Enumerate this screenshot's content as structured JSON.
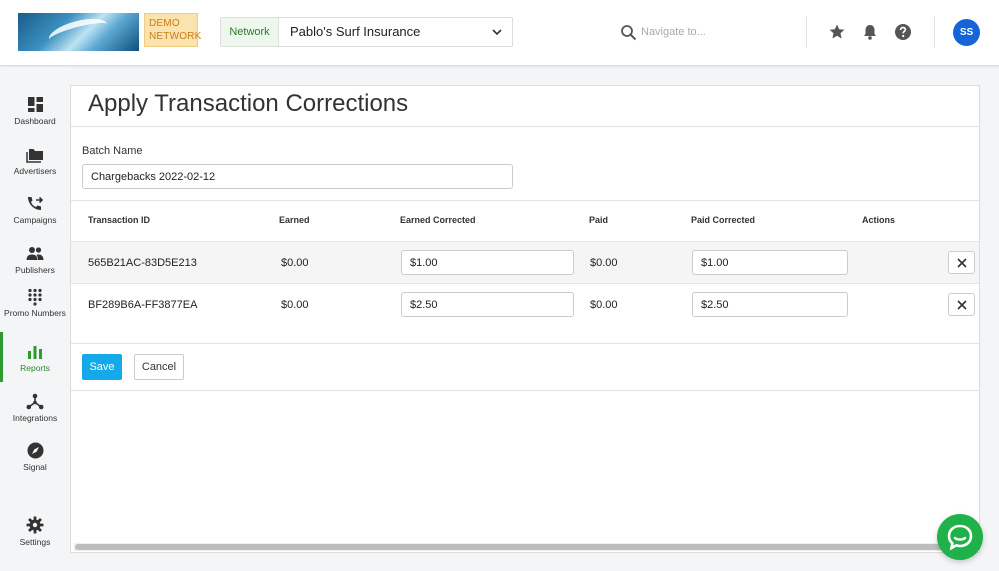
{
  "header": {
    "demo_badge": "DEMO NETWORK",
    "network_label": "Network",
    "network_value": "Pablo's Surf Insurance",
    "search_placeholder": "Navigate to...",
    "avatar_initials": "SS"
  },
  "sidebar": {
    "items": [
      {
        "label": "Dashboard",
        "icon": "dashboard-icon"
      },
      {
        "label": "Advertisers",
        "icon": "folder-icon"
      },
      {
        "label": "Campaigns",
        "icon": "phone-forward-icon"
      },
      {
        "label": "Publishers",
        "icon": "people-icon"
      },
      {
        "label": "Promo Numbers",
        "icon": "dialpad-icon"
      },
      {
        "label": "Reports",
        "icon": "bar-chart-icon",
        "active": true
      },
      {
        "label": "Integrations",
        "icon": "network-icon"
      },
      {
        "label": "Signal",
        "icon": "compass-icon"
      },
      {
        "label": "Settings",
        "icon": "gear-icon"
      }
    ]
  },
  "page": {
    "title": "Apply Transaction Corrections",
    "batch_label": "Batch Name",
    "batch_value": "Chargebacks 2022-02-12"
  },
  "table": {
    "columns": [
      "Transaction ID",
      "Earned",
      "Earned Corrected",
      "Paid",
      "Paid Corrected",
      "Actions"
    ],
    "rows": [
      {
        "transaction_id": "565B21AC-83D5E213",
        "earned": "$0.00",
        "earned_corrected": "$1.00",
        "paid": "$0.00",
        "paid_corrected": "$1.00"
      },
      {
        "transaction_id": "BF289B6A-FF3877EA",
        "earned": "$0.00",
        "earned_corrected": "$2.50",
        "paid": "$0.00",
        "paid_corrected": "$2.50"
      }
    ]
  },
  "actions": {
    "save_label": "Save",
    "cancel_label": "Cancel"
  },
  "colors": {
    "accent_blue": "#14a9e8",
    "active_green": "#2e9b2e",
    "chat_green": "#1fb24a",
    "avatar_blue": "#1565d8"
  }
}
